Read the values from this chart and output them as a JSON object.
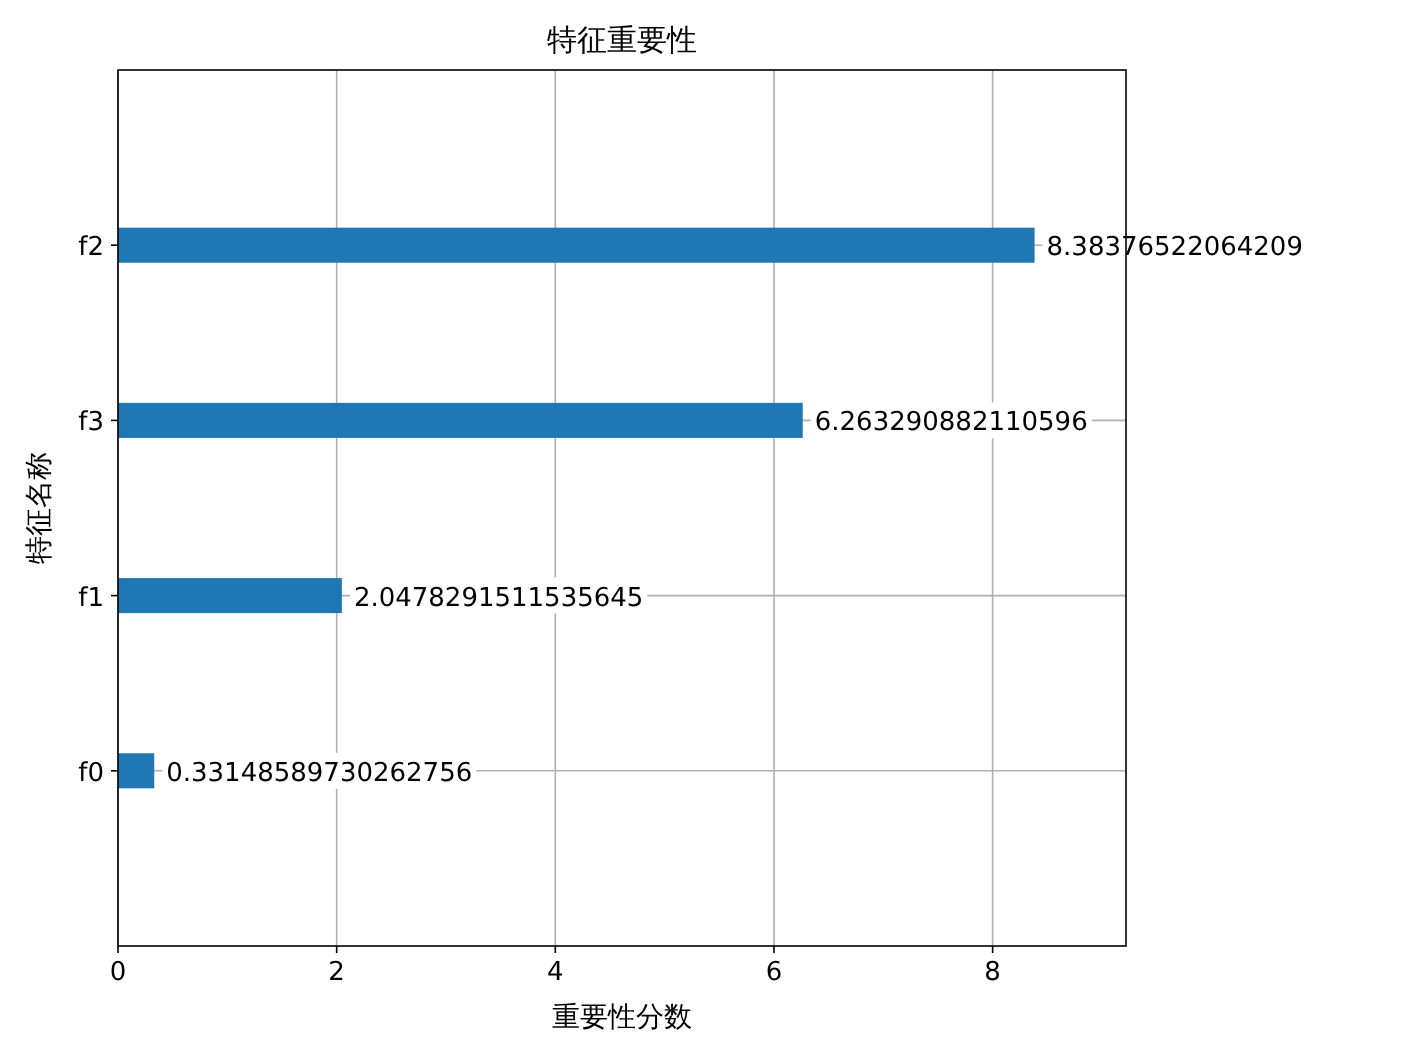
{
  "chart_data": {
    "type": "bar",
    "orientation": "horizontal",
    "title": "特征重要性",
    "xlabel": "重要性分数",
    "ylabel": "特征名称",
    "categories": [
      "f2",
      "f3",
      "f1",
      "f0"
    ],
    "values": [
      8.38376522064209,
      6.263290882110596,
      2.0478291511535645,
      0.33148589730262756
    ],
    "value_labels": [
      "8.38376522064209",
      "6.263290882110596",
      "2.0478291511535645",
      "0.33148589730262756"
    ],
    "color": "#1f77b4",
    "xlim": [
      0,
      9.22
    ],
    "xticks": [
      0,
      2,
      4,
      6,
      8
    ],
    "grid": true
  }
}
